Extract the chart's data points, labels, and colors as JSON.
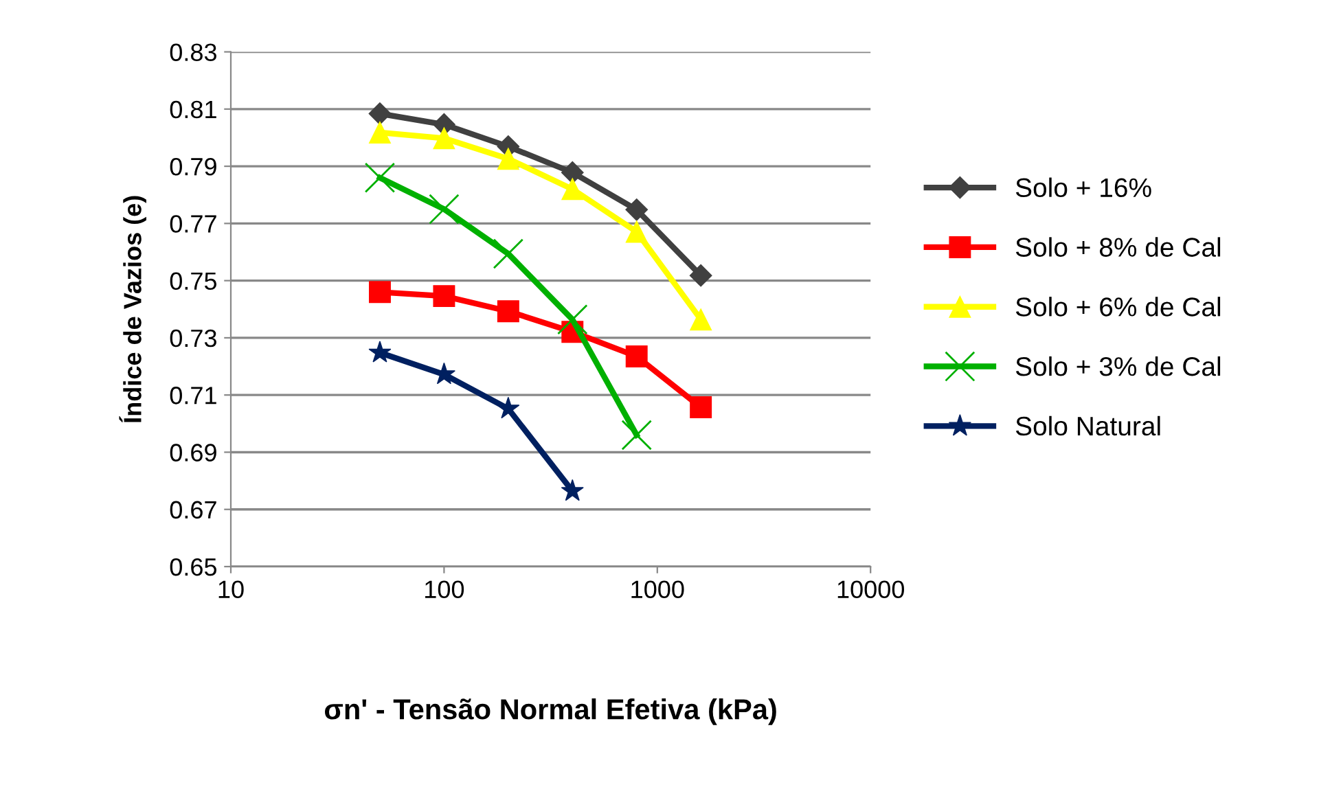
{
  "chart_data": {
    "type": "line",
    "xlabel": "σn' - Tensão Normal Efetiva (kPa)",
    "ylabel": "Índice de Vazios (e)",
    "x": [
      50,
      100,
      200,
      400,
      800,
      1600
    ],
    "series": [
      {
        "name": "Solo + 16%",
        "color": "#404040",
        "marker": "diamond",
        "values": [
          0.8084,
          0.8046,
          0.7969,
          0.7878,
          0.7748,
          0.7518
        ]
      },
      {
        "name": "Solo + 8% de Cal",
        "color": "#ff0000",
        "marker": "square",
        "values": [
          0.746,
          0.7446,
          0.7393,
          0.7321,
          0.7235,
          0.7057
        ]
      },
      {
        "name": "Solo + 6% de Cal",
        "color": "#ffff00",
        "marker": "triangle",
        "values": [
          0.8018,
          0.7998,
          0.7926,
          0.782,
          0.7671,
          0.7364
        ]
      },
      {
        "name": "Solo + 3% de Cal",
        "color": "#00b000",
        "marker": "cross",
        "values": [
          0.786,
          0.775,
          0.7594,
          0.7364,
          0.696,
          null
        ]
      },
      {
        "name": "Solo Natural",
        "color": "#002060",
        "marker": "star",
        "values": [
          0.7248,
          0.7172,
          0.7052,
          0.6764,
          null,
          null
        ]
      }
    ],
    "log": "x",
    "xlim": [
      10,
      10000
    ],
    "xticks": [
      10,
      100,
      1000,
      10000
    ],
    "ylim": [
      0.65,
      0.83
    ],
    "yticks": [
      0.65,
      0.67,
      0.69,
      0.71,
      0.73,
      0.75,
      0.77,
      0.79,
      0.81,
      0.83
    ],
    "grid": "y",
    "legend": "right",
    "line_style": "solid"
  }
}
